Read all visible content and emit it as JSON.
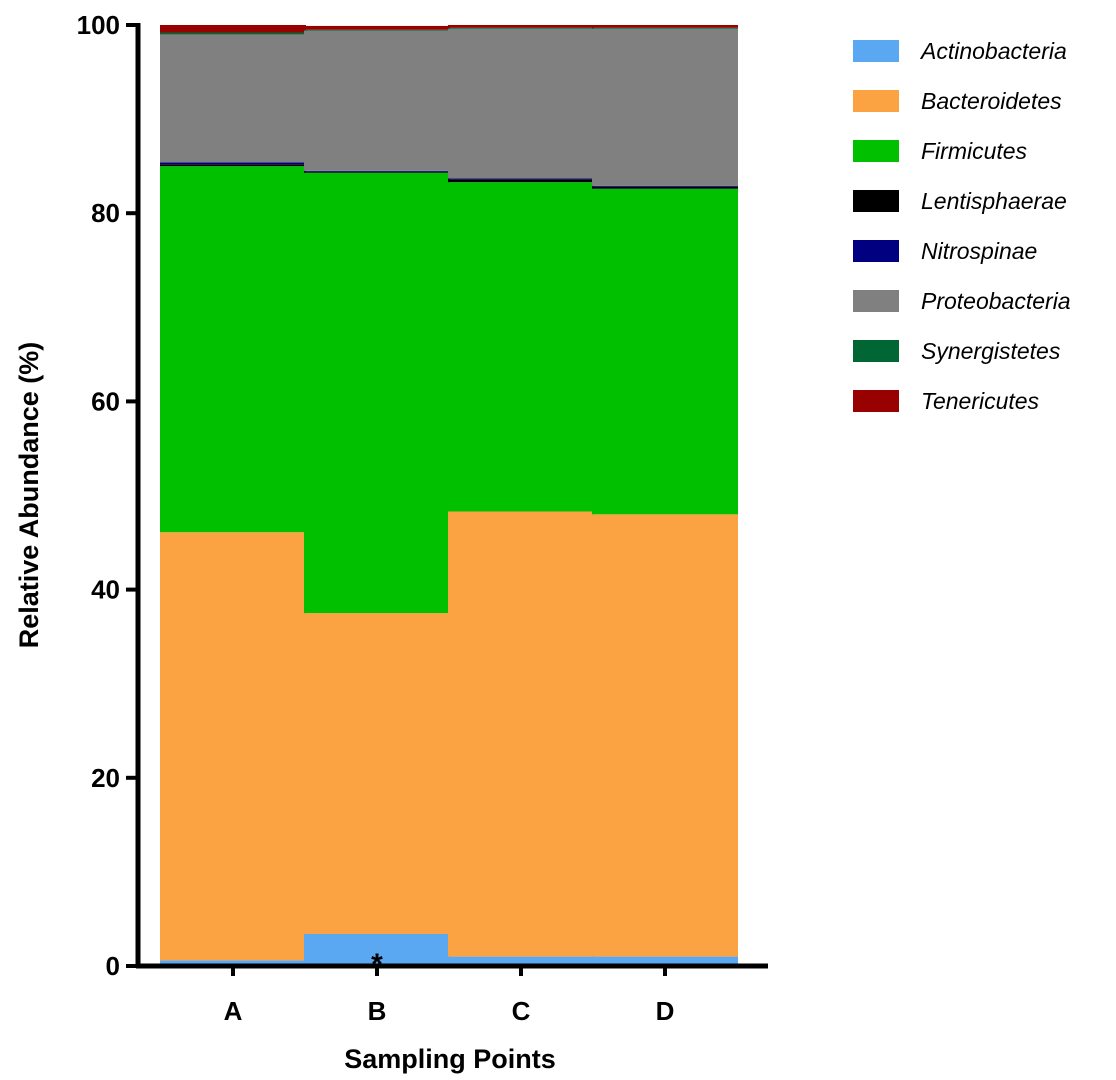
{
  "chart_data": {
    "type": "bar",
    "stacked": true,
    "xlabel": "Sampling Points",
    "ylabel": "Relative Abundance (%)",
    "ylim": [
      0,
      100
    ],
    "yticks": [
      "0",
      "20",
      "40",
      "60",
      "80",
      "100"
    ],
    "grid": false,
    "legend_position": "right",
    "categories": [
      "A",
      "B",
      "C",
      "D"
    ],
    "series": [
      {
        "name": "Actinobacteria",
        "color": "#5aa7f2",
        "values": [
          0.6,
          3.4,
          1.0,
          1.0
        ]
      },
      {
        "name": "Bacteroidetes",
        "color": "#fba343",
        "values": [
          45.5,
          34.1,
          47.3,
          47.0
        ]
      },
      {
        "name": "Firmicutes",
        "color": "#00c000",
        "values": [
          38.9,
          46.8,
          35.0,
          34.6
        ]
      },
      {
        "name": "Lentisphaerae",
        "color": "#000000",
        "values": [
          0.2,
          0.1,
          0.3,
          0.2
        ]
      },
      {
        "name": "Nitrospinae",
        "color": "#000080",
        "values": [
          0.2,
          0.1,
          0.1,
          0.1
        ]
      },
      {
        "name": "Proteobacteria",
        "color": "#808080",
        "values": [
          13.6,
          14.9,
          15.9,
          16.7
        ]
      },
      {
        "name": "Synergistetes",
        "color": "#006633",
        "values": [
          0.2,
          0.1,
          0.1,
          0.1
        ]
      },
      {
        "name": "Tenericutes",
        "color": "#990000",
        "values": [
          0.8,
          0.4,
          0.3,
          0.3
        ]
      }
    ],
    "annotations": [
      {
        "text": "*",
        "category": "B"
      }
    ]
  }
}
